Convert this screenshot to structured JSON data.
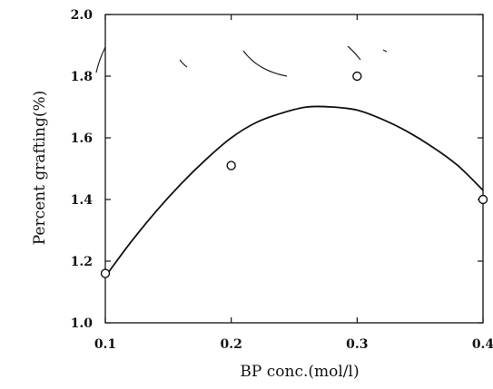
{
  "chart_data": {
    "type": "scatter",
    "title": "",
    "xlabel": "BP conc.(mol/l)",
    "ylabel": "Percent grafting(%)",
    "xlim": [
      0.1,
      0.4
    ],
    "ylim": [
      1.0,
      2.0
    ],
    "x_ticks": [
      {
        "value": 0.1,
        "label": "0.1"
      },
      {
        "value": 0.2,
        "label": "0.2"
      },
      {
        "value": 0.3,
        "label": "0.3"
      },
      {
        "value": 0.4,
        "label": "0.4"
      }
    ],
    "y_ticks": [
      {
        "value": 1.0,
        "label": "1.0"
      },
      {
        "value": 1.2,
        "label": "1.2"
      },
      {
        "value": 1.4,
        "label": "1.4"
      },
      {
        "value": 1.6,
        "label": "1.6"
      },
      {
        "value": 1.8,
        "label": "1.8"
      },
      {
        "value": 2.0,
        "label": "2.0"
      }
    ],
    "grid": false,
    "series": [
      {
        "kind": "points",
        "marker": "open-circle",
        "x": [
          0.1,
          0.2,
          0.3,
          0.4
        ],
        "y": [
          1.16,
          1.51,
          1.8,
          1.4
        ]
      },
      {
        "kind": "fit-curve",
        "x": [
          0.1,
          0.12,
          0.14,
          0.16,
          0.18,
          0.2,
          0.22,
          0.24,
          0.26,
          0.28,
          0.3,
          0.32,
          0.34,
          0.36,
          0.38,
          0.4
        ],
        "y": [
          1.15,
          1.26,
          1.36,
          1.45,
          1.53,
          1.6,
          1.65,
          1.68,
          1.7,
          1.7,
          1.69,
          1.66,
          1.62,
          1.57,
          1.51,
          1.43
        ]
      }
    ],
    "colors": {
      "ink": "#111111",
      "background": "#ffffff"
    }
  }
}
